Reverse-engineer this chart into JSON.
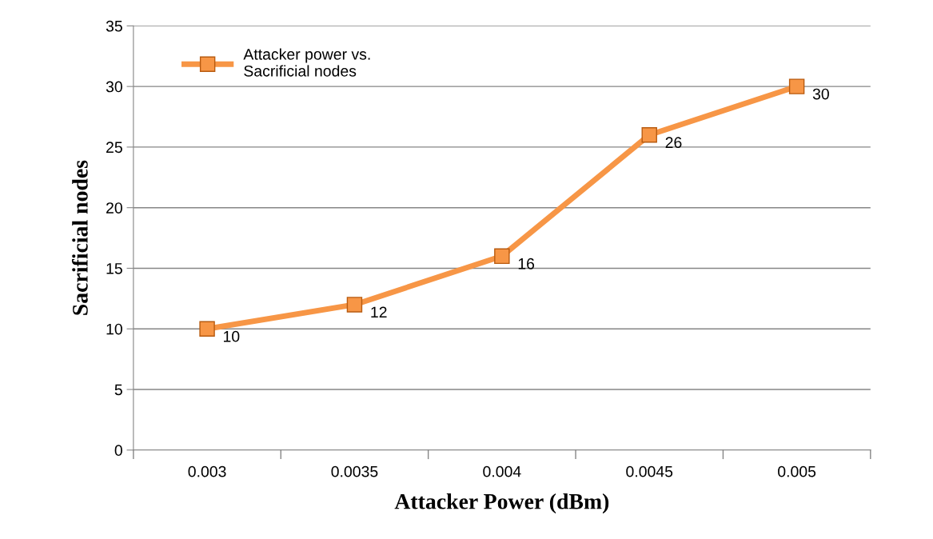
{
  "chart_data": {
    "type": "line",
    "xlabel": "Attacker Power (dBm)",
    "ylabel": "Sacrificial nodes",
    "categories": [
      "0.003",
      "0.0035",
      "0.004",
      "0.0045",
      "0.005"
    ],
    "series": [
      {
        "name": "Attacker power vs.\nSacrificial nodes",
        "color": "#f79646",
        "values": [
          10,
          12,
          16,
          26,
          30
        ]
      }
    ],
    "ylim": [
      0,
      35
    ],
    "yticks": [
      0,
      5,
      10,
      15,
      20,
      25,
      30,
      35
    ],
    "grid": "y",
    "legend": "top left",
    "marker": "square",
    "line_style": "solid",
    "data_labels": true
  }
}
